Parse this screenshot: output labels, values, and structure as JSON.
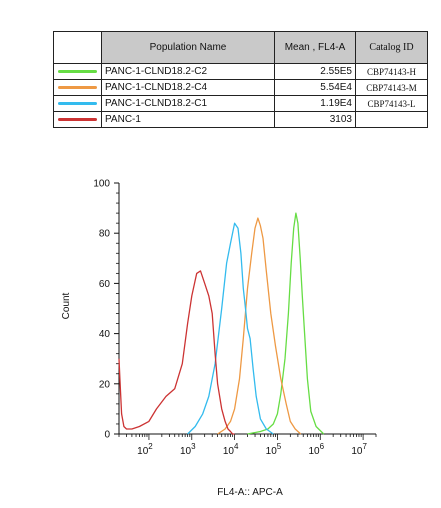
{
  "table": {
    "headers": [
      "",
      "Population Name",
      "Mean , FL4-A",
      "Catalog ID"
    ],
    "rows": [
      {
        "name": "PANC-1-CLND18.2-C2",
        "mean": "2.55E5",
        "catalog": "CBP74143-H",
        "color": "#66dd44"
      },
      {
        "name": "PANC-1-CLND18.2-C4",
        "mean": "5.54E4",
        "catalog": "CBP74143-M",
        "color": "#ee9944"
      },
      {
        "name": "PANC-1-CLND18.2-C1",
        "mean": "1.19E4",
        "catalog": "CBP74143-L",
        "color": "#33bbee"
      },
      {
        "name": "PANC-1",
        "mean": "3103",
        "catalog": "",
        "color": "#cc3333"
      }
    ]
  },
  "chart_data": {
    "type": "line",
    "xlabel": "FL4-A:: APC-A",
    "ylabel": "Count",
    "x_scale": "log",
    "xlim": [
      20,
      20000000
    ],
    "ylim": [
      0,
      100
    ],
    "yticks": [
      0,
      20,
      40,
      60,
      80,
      100
    ],
    "xticks": [
      {
        "value": 100,
        "base": "10",
        "exp": "2"
      },
      {
        "value": 1000,
        "base": "10",
        "exp": "3"
      },
      {
        "value": 10000,
        "base": "10",
        "exp": "4"
      },
      {
        "value": 100000,
        "base": "10",
        "exp": "5"
      },
      {
        "value": 1000000,
        "base": "10",
        "exp": "6"
      },
      {
        "value": 10000000,
        "base": "10",
        "exp": "7"
      }
    ],
    "series": [
      {
        "name": "PANC-1-CLND18.2-C2",
        "color": "#66dd44",
        "x": [
          20000,
          40000,
          60000,
          80000,
          100000,
          120000,
          150000,
          180000,
          210000,
          240000,
          270000,
          300000,
          340000,
          380000,
          430000,
          500000,
          600000,
          800000,
          1200000
        ],
        "y": [
          0,
          1,
          2,
          4,
          8,
          16,
          30,
          48,
          68,
          82,
          88,
          84,
          70,
          55,
          40,
          22,
          9,
          3,
          0
        ]
      },
      {
        "name": "PANC-1-CLND18.2-C4",
        "color": "#ee9944",
        "x": [
          4000,
          6000,
          8000,
          10000,
          13000,
          16000,
          20000,
          25000,
          30000,
          35000,
          40000,
          46000,
          55000,
          70000,
          90000,
          120000,
          160000,
          200000,
          260000,
          350000
        ],
        "y": [
          0,
          2,
          5,
          10,
          22,
          38,
          58,
          72,
          82,
          86,
          83,
          78,
          65,
          48,
          35,
          22,
          12,
          5,
          2,
          0
        ]
      },
      {
        "name": "PANC-1-CLND18.2-C1",
        "color": "#33bbee",
        "x": [
          800,
          1200,
          1800,
          2500,
          3500,
          5000,
          6500,
          8000,
          10000,
          12000,
          14000,
          16000,
          18000,
          20000,
          23000,
          27000,
          32000,
          40000,
          55000,
          80000
        ],
        "y": [
          0,
          3,
          8,
          15,
          28,
          50,
          68,
          76,
          84,
          82,
          72,
          58,
          50,
          42,
          38,
          26,
          15,
          6,
          2,
          0
        ]
      },
      {
        "name": "PANC-1",
        "color": "#cc3333",
        "x": [
          20,
          21,
          23,
          26,
          30,
          40,
          60,
          100,
          150,
          250,
          400,
          600,
          800,
          1000,
          1300,
          1600,
          2000,
          2500,
          3000,
          3500,
          4000,
          5000,
          6000,
          7000,
          8000,
          9000,
          10000
        ],
        "y": [
          30,
          22,
          8,
          3,
          2,
          2,
          3,
          5,
          10,
          15,
          18,
          28,
          44,
          55,
          64,
          65,
          60,
          55,
          48,
          32,
          20,
          10,
          5,
          2,
          1,
          0,
          0
        ]
      }
    ]
  }
}
